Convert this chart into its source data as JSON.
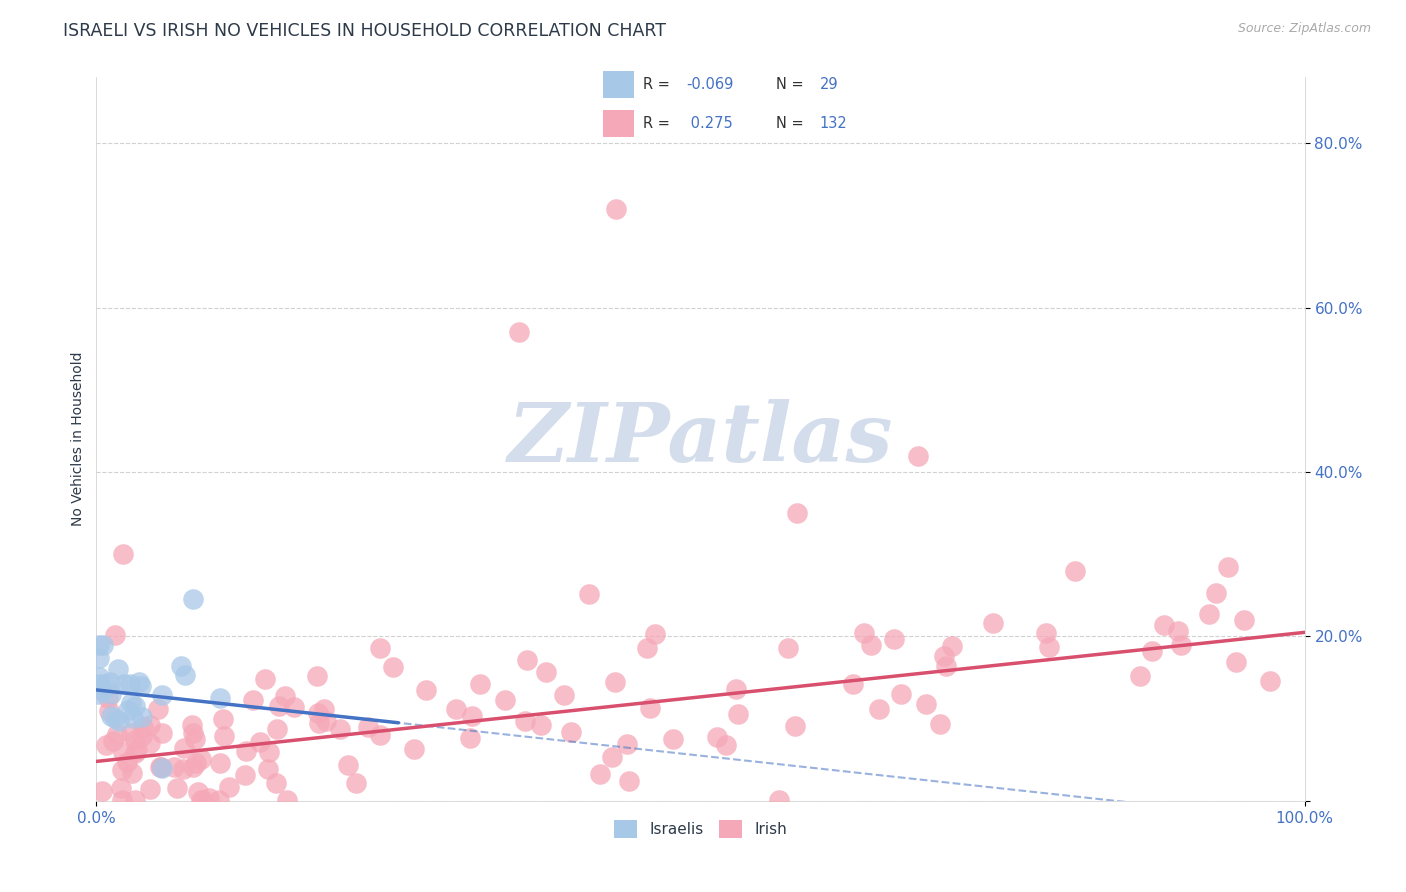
{
  "title": "ISRAELI VS IRISH NO VEHICLES IN HOUSEHOLD CORRELATION CHART",
  "source_text": "Source: ZipAtlas.com",
  "ylabel": "No Vehicles in Household",
  "xlim": [
    0,
    1
  ],
  "ylim": [
    0,
    0.88
  ],
  "y_ticks": [
    0.0,
    0.2,
    0.4,
    0.6,
    0.8
  ],
  "y_tick_labels": [
    "",
    "20.0%",
    "40.0%",
    "60.0%",
    "80.0%"
  ],
  "israeli_color": "#a8c8e8",
  "irish_color": "#f5a8b8",
  "israeli_line_color": "#4472c4",
  "irish_line_color": "#d94f6e",
  "tick_color": "#4472c4",
  "grid_color": "#cccccc",
  "title_color": "#2d3a4a",
  "watermark_text": "ZIPatlas",
  "watermark_color": "#ccd8e8",
  "legend_israeli_R": "-0.069",
  "legend_israeli_N": "29",
  "legend_irish_R": "0.275",
  "legend_irish_N": "132",
  "seed": 17,
  "n_israeli": 29,
  "n_irish": 132,
  "isr_trend_x0": 0.0,
  "isr_trend_y0": 0.135,
  "isr_trend_x1": 0.25,
  "isr_trend_y1": 0.095,
  "iri_trend_x0": 0.0,
  "iri_trend_y0": 0.048,
  "iri_trend_x1": 1.0,
  "iri_trend_y1": 0.205
}
